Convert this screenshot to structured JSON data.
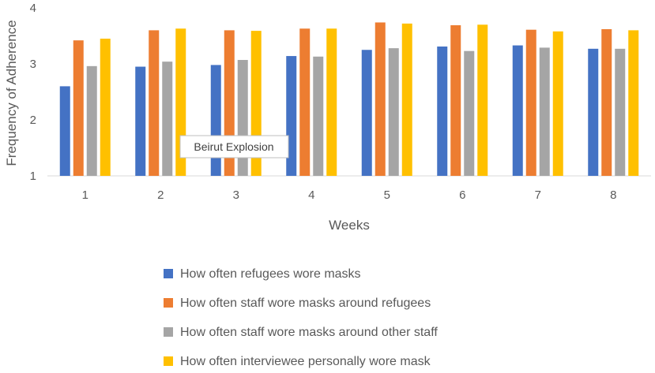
{
  "chart_data": {
    "type": "bar",
    "xlabel": "Weeks",
    "ylabel": "Frequency of Adherence",
    "ylim": [
      1,
      4
    ],
    "yticks": [
      "1",
      "2",
      "3",
      "4"
    ],
    "grid": false,
    "legend_position": "bottom",
    "categories": [
      "1",
      "2",
      "3",
      "4",
      "5",
      "6",
      "7",
      "8"
    ],
    "series": [
      {
        "name": "How often refugees wore masks",
        "color": "#4472C4",
        "values": [
          2.6,
          2.95,
          2.98,
          3.14,
          3.25,
          3.31,
          3.33,
          3.27
        ]
      },
      {
        "name": "How often staff wore masks around refugees",
        "color": "#ED7D31",
        "values": [
          3.42,
          3.6,
          3.6,
          3.63,
          3.74,
          3.69,
          3.61,
          3.62
        ]
      },
      {
        "name": "How often staff wore masks around other staff",
        "color": "#A5A5A5",
        "values": [
          2.96,
          3.04,
          3.07,
          3.13,
          3.28,
          3.23,
          3.29,
          3.27
        ]
      },
      {
        "name": "How often interviewee personally wore mask",
        "color": "#FFC000",
        "values": [
          3.45,
          3.63,
          3.59,
          3.63,
          3.72,
          3.7,
          3.58,
          3.6
        ]
      }
    ],
    "annotations": [
      {
        "text": "Beirut Explosion",
        "near_category": "3"
      }
    ]
  }
}
